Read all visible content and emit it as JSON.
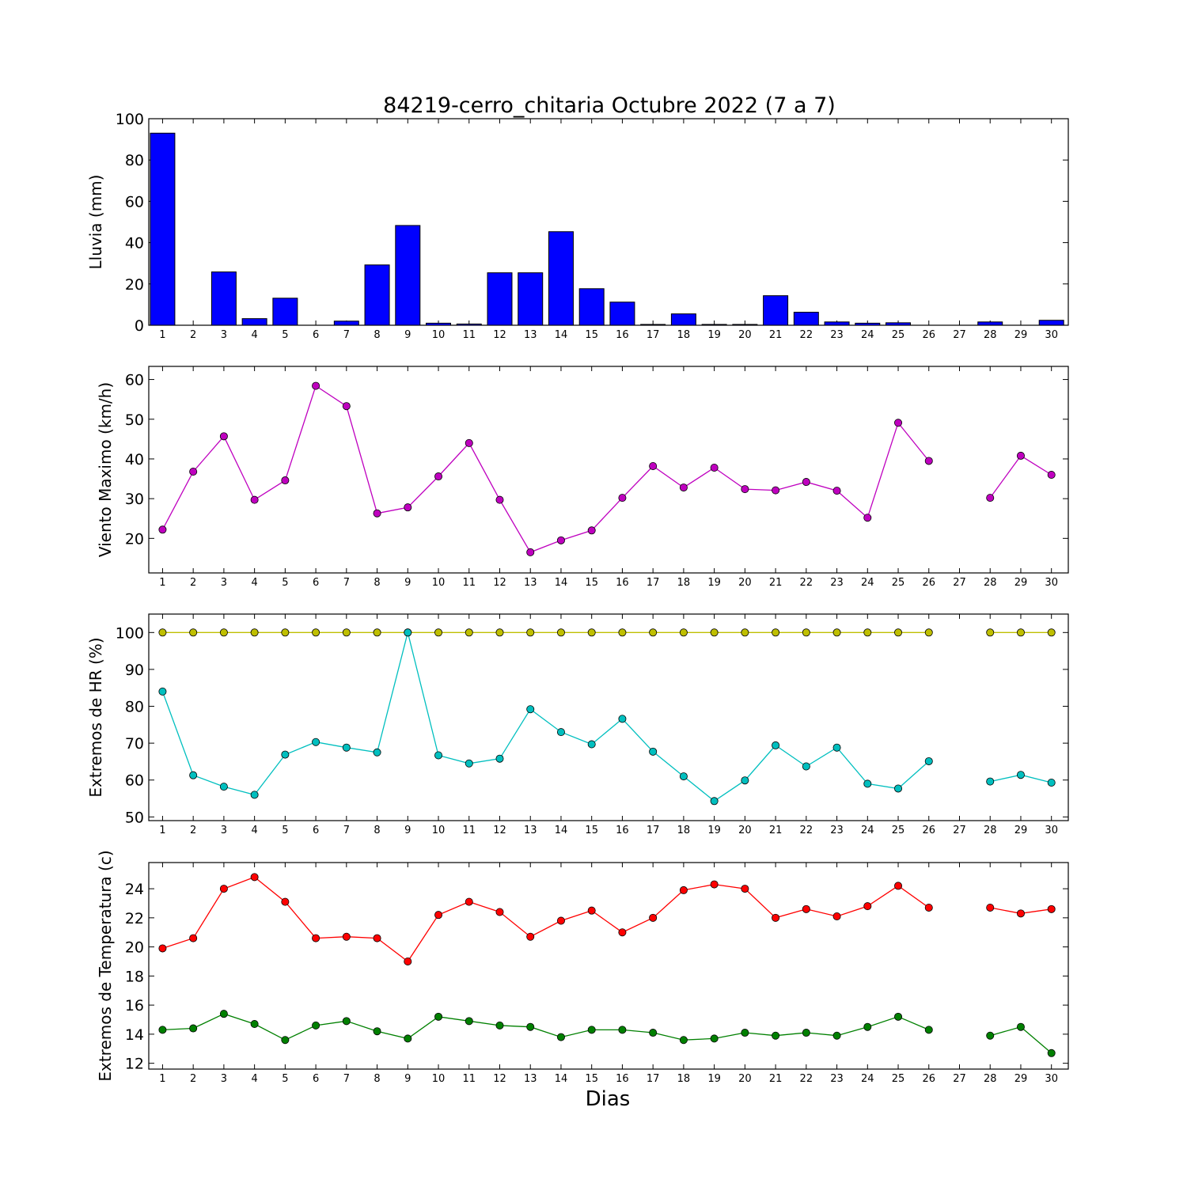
{
  "title": "84219-cerro_chitaria Octubre 2022  (7 a 7)",
  "xlabel": "Dias",
  "days": [
    1,
    2,
    3,
    4,
    5,
    6,
    7,
    8,
    9,
    10,
    11,
    12,
    13,
    14,
    15,
    16,
    17,
    18,
    19,
    20,
    21,
    22,
    23,
    24,
    25,
    26,
    27,
    28,
    29,
    30
  ],
  "colors": {
    "rain": "#0000ff",
    "wind": "#bf00bf",
    "hr_max": "#bfbf00",
    "hr_min": "#00bfbf",
    "t_max": "#ff0000",
    "t_min": "#008000"
  },
  "chart_data": [
    {
      "type": "bar",
      "ylabel": "Lluvia (mm)",
      "ylim": [
        0,
        100
      ],
      "yticks": [
        0,
        20,
        40,
        60,
        80,
        100
      ],
      "categories": [
        1,
        2,
        3,
        4,
        5,
        6,
        7,
        8,
        9,
        10,
        11,
        12,
        13,
        14,
        15,
        16,
        17,
        18,
        19,
        20,
        21,
        22,
        23,
        24,
        25,
        26,
        27,
        28,
        29,
        30
      ],
      "values": [
        93,
        0,
        25.8,
        3.2,
        13.1,
        0,
        2,
        29.2,
        48.3,
        1,
        0.6,
        25.4,
        25.4,
        45.3,
        17.7,
        11.2,
        0.4,
        5.5,
        0.4,
        0.4,
        14.3,
        6.3,
        1.6,
        1,
        1.2,
        0,
        0,
        1.6,
        0,
        2.4
      ]
    },
    {
      "type": "line",
      "ylabel": "Viento Maximo (km/h)",
      "ylim": [
        11.3,
        63.3
      ],
      "yticks": [
        20,
        30,
        40,
        50,
        60
      ],
      "x": [
        1,
        2,
        3,
        4,
        5,
        6,
        7,
        8,
        9,
        10,
        11,
        12,
        13,
        14,
        15,
        16,
        17,
        18,
        19,
        20,
        21,
        22,
        23,
        24,
        25,
        26,
        27,
        28,
        29,
        30
      ],
      "series": [
        {
          "values": [
            22.2,
            36.8,
            45.7,
            29.7,
            34.6,
            58.4,
            53.3,
            26.3,
            27.8,
            35.6,
            44,
            29.7,
            16.5,
            19.5,
            22,
            30.2,
            38.2,
            32.8,
            37.8,
            32.4,
            32.1,
            34.2,
            32,
            25.2,
            49.1,
            39.5,
            null,
            30.2,
            40.8,
            36
          ]
        }
      ]
    },
    {
      "type": "line",
      "ylabel": "Extremos de HR (%)",
      "ylim": [
        49,
        105
      ],
      "yticks": [
        50,
        60,
        70,
        80,
        90,
        100
      ],
      "x": [
        1,
        2,
        3,
        4,
        5,
        6,
        7,
        8,
        9,
        10,
        11,
        12,
        13,
        14,
        15,
        16,
        17,
        18,
        19,
        20,
        21,
        22,
        23,
        24,
        25,
        26,
        27,
        28,
        29,
        30
      ],
      "series": [
        {
          "values": [
            100,
            100,
            100,
            100,
            100,
            100,
            100,
            100,
            100,
            100,
            100,
            100,
            100,
            100,
            100,
            100,
            100,
            100,
            100,
            100,
            100,
            100,
            100,
            100,
            100,
            100,
            null,
            100,
            100,
            100
          ]
        },
        {
          "values": [
            84,
            61.3,
            58.2,
            56,
            66.9,
            70.3,
            68.8,
            67.5,
            100,
            66.7,
            64.5,
            65.8,
            79.2,
            73,
            69.7,
            76.6,
            67.7,
            61,
            54.3,
            59.9,
            69.4,
            63.7,
            68.8,
            59,
            57.7,
            65.1,
            null,
            59.6,
            61.4,
            59.3
          ]
        }
      ]
    },
    {
      "type": "line",
      "ylabel": "Extremos de Temperatura (c)",
      "ylim": [
        11.6,
        25.8
      ],
      "yticks": [
        12,
        14,
        16,
        18,
        20,
        22,
        24
      ],
      "x": [
        1,
        2,
        3,
        4,
        5,
        6,
        7,
        8,
        9,
        10,
        11,
        12,
        13,
        14,
        15,
        16,
        17,
        18,
        19,
        20,
        21,
        22,
        23,
        24,
        25,
        26,
        27,
        28,
        29,
        30
      ],
      "series": [
        {
          "values": [
            19.9,
            20.6,
            24,
            24.8,
            23.1,
            20.6,
            20.7,
            20.6,
            19,
            22.2,
            23.1,
            22.4,
            20.7,
            21.8,
            22.5,
            21,
            22,
            23.9,
            24.3,
            24,
            22,
            22.6,
            22.1,
            22.8,
            24.2,
            22.7,
            null,
            22.7,
            22.3,
            22.6
          ]
        },
        {
          "values": [
            14.3,
            14.4,
            15.4,
            14.7,
            13.6,
            14.6,
            14.9,
            14.2,
            13.7,
            15.2,
            14.9,
            14.6,
            14.5,
            13.8,
            14.3,
            14.3,
            14.1,
            13.6,
            13.7,
            14.1,
            13.9,
            14.1,
            13.9,
            14.5,
            15.2,
            14.3,
            null,
            13.9,
            14.5,
            12.7
          ]
        }
      ]
    }
  ]
}
